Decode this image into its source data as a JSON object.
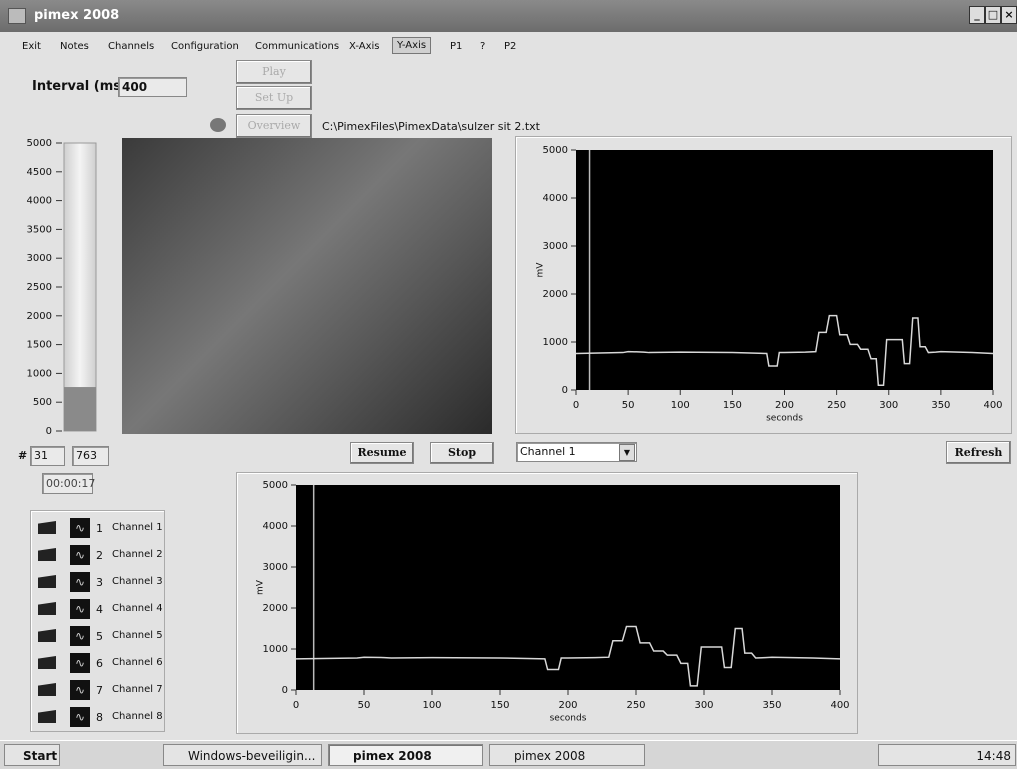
{
  "window": {
    "title": "pimex 2008"
  },
  "menu": [
    "Exit",
    "Notes",
    "Channels",
    "Configuration",
    "Communications",
    "X-Axis",
    "Y-Axis",
    "P1",
    "?",
    "P2"
  ],
  "controls": {
    "interval_label": "Interval (ms)",
    "interval_value": "400",
    "play": "Play",
    "setup": "Set Up",
    "overview": "Overview",
    "file_path": "C:\\PimexFiles\\PimexData\\sulzer sit 2.txt",
    "counter_label": "#",
    "counter": "31",
    "counter_value": "763",
    "elapsed": "00:00:17",
    "resume": "Resume",
    "stop": "Stop",
    "channel_select": "Channel 1",
    "refresh": "Refresh"
  },
  "channels": [
    {
      "number": "1",
      "name": "Channel 1"
    },
    {
      "number": "2",
      "name": "Channel 2"
    },
    {
      "number": "3",
      "name": "Channel 3"
    },
    {
      "number": "4",
      "name": "Channel 4"
    },
    {
      "number": "5",
      "name": "Channel 5"
    },
    {
      "number": "6",
      "name": "Channel 6"
    },
    {
      "number": "7",
      "name": "Channel 7"
    },
    {
      "number": "8",
      "name": "Channel 8"
    }
  ],
  "taskbar": {
    "start": "Start",
    "items": [
      "Windows-beveiligin...",
      "pimex 2008",
      "pimex 2008"
    ],
    "clock": "14:48"
  },
  "chart_data": [
    {
      "type": "gauge",
      "value": 763,
      "color": "#8a8a8a",
      "ylim": [
        0,
        5000
      ],
      "yticks": [
        0,
        500,
        1000,
        1500,
        2000,
        2500,
        3000,
        3500,
        4000,
        4500,
        5000
      ]
    },
    {
      "type": "line",
      "ylabel": "mV",
      "xlabel": "seconds",
      "xlim": [
        0,
        400
      ],
      "ylim": [
        0,
        5000
      ],
      "xticks": [
        0,
        50,
        100,
        150,
        200,
        250,
        300,
        350,
        400
      ],
      "yticks": [
        0,
        1000,
        2000,
        3000,
        4000,
        5000
      ],
      "cursor": 13,
      "x": [
        0,
        45,
        50,
        65,
        70,
        100,
        150,
        183,
        185,
        193,
        195,
        200,
        220,
        230,
        233,
        240,
        243,
        250,
        253,
        260,
        263,
        270,
        273,
        280,
        283,
        288,
        290,
        295,
        298,
        313,
        315,
        320,
        323,
        328,
        330,
        335,
        338,
        345,
        350,
        380,
        400
      ],
      "series": [
        {
          "color": "#d8d8d8",
          "values": [
            760,
            780,
            800,
            790,
            780,
            790,
            780,
            760,
            500,
            500,
            780,
            780,
            790,
            800,
            1200,
            1200,
            1550,
            1550,
            1150,
            1150,
            950,
            950,
            850,
            850,
            650,
            650,
            100,
            100,
            1050,
            1050,
            550,
            550,
            1500,
            1500,
            900,
            900,
            780,
            790,
            800,
            780,
            760
          ]
        }
      ]
    },
    {
      "type": "line",
      "ylabel": "mV",
      "xlabel": "seconds",
      "xlim": [
        0,
        400
      ],
      "ylim": [
        0,
        5000
      ],
      "xticks": [
        0,
        50,
        100,
        150,
        200,
        250,
        300,
        350,
        400
      ],
      "yticks": [
        0,
        1000,
        2000,
        3000,
        4000,
        5000
      ],
      "cursor": 13,
      "x": [
        0,
        45,
        50,
        65,
        70,
        100,
        150,
        183,
        185,
        193,
        195,
        200,
        220,
        230,
        233,
        240,
        243,
        250,
        253,
        260,
        263,
        270,
        273,
        280,
        283,
        288,
        290,
        295,
        298,
        313,
        315,
        320,
        323,
        328,
        330,
        335,
        338,
        345,
        350,
        380,
        400
      ],
      "series": [
        {
          "color": "#d8d8d8",
          "values": [
            760,
            780,
            800,
            790,
            780,
            790,
            780,
            760,
            500,
            500,
            780,
            780,
            790,
            800,
            1200,
            1200,
            1550,
            1550,
            1150,
            1150,
            950,
            950,
            850,
            850,
            650,
            650,
            100,
            100,
            1050,
            1050,
            550,
            550,
            1500,
            1500,
            900,
            900,
            780,
            790,
            800,
            780,
            760
          ]
        }
      ]
    }
  ]
}
